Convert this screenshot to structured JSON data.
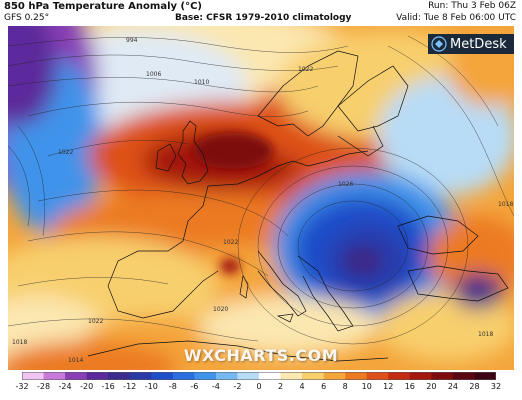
{
  "header": {
    "title": "850 hPa Temperature Anomaly (°C)",
    "model": "GFS 0.25°",
    "base": "Base: CFSR 1979-2010 climatology",
    "run": "Run: Thu 3 Feb 06Z",
    "valid": "Valid: Tue 8 Feb 06:00 UTC"
  },
  "logo": {
    "text": "MetDesk",
    "icon": "metdesk-logo-icon"
  },
  "watermark": "WXCHARTS.COM",
  "contours": {
    "labels": [
      "994",
      "1006",
      "1010",
      "1022",
      "1022",
      "1026",
      "1022",
      "1018",
      "1022",
      "1018",
      "1014",
      "1018",
      "1020"
    ]
  },
  "legend": {
    "values": [
      "-32",
      "-28",
      "-24",
      "-20",
      "-16",
      "-12",
      "-10",
      "-8",
      "-6",
      "-4",
      "-2",
      "0",
      "2",
      "4",
      "6",
      "8",
      "10",
      "12",
      "16",
      "20",
      "24",
      "28",
      "32"
    ],
    "colors": [
      "#f2c4f2",
      "#c77ad9",
      "#8a3fb5",
      "#5b2a9c",
      "#3a2b8c",
      "#2a3aa8",
      "#1e4ec9",
      "#2a6ee0",
      "#3f93ea",
      "#76b8f0",
      "#b8dcf6",
      "#ffffff",
      "#fbe7b0",
      "#f8cf6d",
      "#f4a53b",
      "#ec7a22",
      "#de5118",
      "#c32b12",
      "#a3170f",
      "#7d0c0e",
      "#5a0712",
      "#3d0513"
    ]
  },
  "colors": {
    "warm_accent": "#e8641e",
    "cold_accent": "#1e4ec9"
  }
}
